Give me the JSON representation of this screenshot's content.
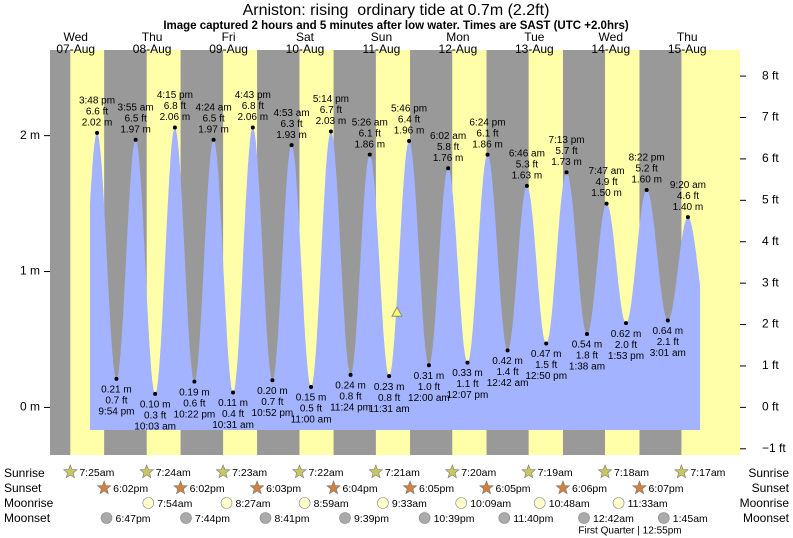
{
  "chart_data": {
    "type": "tide",
    "title": "Arniston: rising  ordinary tide at 0.7m (2.2ft)",
    "subtitle": "Image captured 2 hours and 5 minutes after low water. Times are SAST (UTC +2.0hrs)",
    "ylim": [
      -0.35,
      2.63
    ],
    "yticks": [
      {
        "value": 0,
        "label": "0 m"
      },
      {
        "value": 1,
        "label": "1 m"
      },
      {
        "value": 2,
        "label": "2 m"
      }
    ],
    "y2lim": [
      -1.15,
      8.63
    ],
    "y2ticks": [
      {
        "value": -1,
        "label": "−1 ft"
      },
      {
        "value": 0,
        "label": "0 ft"
      },
      {
        "value": 1,
        "label": "1 ft"
      },
      {
        "value": 2,
        "label": "2 ft"
      },
      {
        "value": 3,
        "label": "3 ft"
      },
      {
        "value": 4,
        "label": "4 ft"
      },
      {
        "value": 5,
        "label": "5 ft"
      },
      {
        "value": 6,
        "label": "6 ft"
      },
      {
        "value": 7,
        "label": "7 ft"
      },
      {
        "value": 8,
        "label": "8 ft"
      }
    ],
    "current_level": 0.7,
    "row_labels": {
      "sunrise": "Sunrise",
      "sunset": "Sunset",
      "moonrise": "Moonrise",
      "moonset": "Moonset"
    },
    "moon_phase": "First Quarter | 12:55pm",
    "colors": {
      "day": "#ffffaa",
      "night": "#999999",
      "water": "#a3b3ff",
      "date": "#cc0000"
    },
    "days": [
      {
        "weekday": "Wed",
        "date": "07-Aug",
        "sunrise": "7:25am",
        "sunset": "6:02pm",
        "moonrise": null,
        "moonset": "6:47pm",
        "tides": [
          {
            "time": "3:48 pm",
            "height": 2.02,
            "height_label": "2.02 m",
            "ft_label": "6.6 ft"
          },
          {
            "time": "9:54 pm",
            "height": 0.21,
            "height_label": "0.21 m",
            "ft_label": "0.7 ft"
          }
        ]
      },
      {
        "weekday": "Thu",
        "date": "08-Aug",
        "sunrise": "7:24am",
        "sunset": "6:02pm",
        "moonrise": "7:54am",
        "moonset": "7:44pm",
        "tides": [
          {
            "time": "3:55 am",
            "height": 1.97,
            "height_label": "1.97 m",
            "ft_label": "6.5 ft"
          },
          {
            "time": "10:03 am",
            "height": 0.1,
            "height_label": "0.10 m",
            "ft_label": "0.3 ft"
          },
          {
            "time": "4:15 pm",
            "height": 2.06,
            "height_label": "2.06 m",
            "ft_label": "6.8 ft"
          },
          {
            "time": "10:22 pm",
            "height": 0.19,
            "height_label": "0.19 m",
            "ft_label": "0.6 ft"
          }
        ]
      },
      {
        "weekday": "Fri",
        "date": "09-Aug",
        "sunrise": "7:23am",
        "sunset": "6:03pm",
        "moonrise": "8:27am",
        "moonset": "8:41pm",
        "tides": [
          {
            "time": "4:24 am",
            "height": 1.97,
            "height_label": "1.97 m",
            "ft_label": "6.5 ft"
          },
          {
            "time": "10:31 am",
            "height": 0.11,
            "height_label": "0.11 m",
            "ft_label": "0.4 ft"
          },
          {
            "time": "4:43 pm",
            "height": 2.06,
            "height_label": "2.06 m",
            "ft_label": "6.8 ft"
          },
          {
            "time": "10:52 pm",
            "height": 0.2,
            "height_label": "0.20 m",
            "ft_label": "0.7 ft"
          }
        ]
      },
      {
        "weekday": "Sat",
        "date": "10-Aug",
        "sunrise": "7:22am",
        "sunset": "6:04pm",
        "moonrise": "8:59am",
        "moonset": "9:39pm",
        "tides": [
          {
            "time": "4:53 am",
            "height": 1.93,
            "height_label": "1.93 m",
            "ft_label": "6.3 ft"
          },
          {
            "time": "11:00 am",
            "height": 0.15,
            "height_label": "0.15 m",
            "ft_label": "0.5 ft"
          },
          {
            "time": "5:14 pm",
            "height": 2.03,
            "height_label": "2.03 m",
            "ft_label": "6.7 ft"
          },
          {
            "time": "11:24 pm",
            "height": 0.24,
            "height_label": "0.24 m",
            "ft_label": "0.8 ft"
          }
        ]
      },
      {
        "weekday": "Sun",
        "date": "11-Aug",
        "sunrise": "7:21am",
        "sunset": "6:05pm",
        "moonrise": "9:33am",
        "moonset": "10:39pm",
        "tides": [
          {
            "time": "5:26 am",
            "height": 1.86,
            "height_label": "1.86 m",
            "ft_label": "6.1 ft"
          },
          {
            "time": "11:31 am",
            "height": 0.23,
            "height_label": "0.23 m",
            "ft_label": "0.8 ft"
          },
          {
            "time": "5:46 pm",
            "height": 1.96,
            "height_label": "1.96 m",
            "ft_label": "6.4 ft"
          }
        ]
      },
      {
        "weekday": "Mon",
        "date": "12-Aug",
        "sunrise": "7:20am",
        "sunset": "6:05pm",
        "moonrise": "10:09am",
        "moonset": "11:40pm",
        "tides": [
          {
            "time": "12:00 am",
            "height": 0.31,
            "height_label": "0.31 m",
            "ft_label": "1.0 ft"
          },
          {
            "time": "6:02 am",
            "height": 1.76,
            "height_label": "1.76 m",
            "ft_label": "5.8 ft"
          },
          {
            "time": "12:07 pm",
            "height": 0.33,
            "height_label": "0.33 m",
            "ft_label": "1.1 ft"
          },
          {
            "time": "6:24 pm",
            "height": 1.86,
            "height_label": "1.86 m",
            "ft_label": "6.1 ft"
          }
        ]
      },
      {
        "weekday": "Tue",
        "date": "13-Aug",
        "sunrise": "7:19am",
        "sunset": "6:06pm",
        "moonrise": "10:48am",
        "moonset": null,
        "tides": [
          {
            "time": "12:42 am",
            "height": 0.42,
            "height_label": "0.42 m",
            "ft_label": "1.4 ft"
          },
          {
            "time": "6:46 am",
            "height": 1.63,
            "height_label": "1.63 m",
            "ft_label": "5.3 ft"
          },
          {
            "time": "12:50 pm",
            "height": 0.47,
            "height_label": "0.47 m",
            "ft_label": "1.5 ft"
          },
          {
            "time": "7:13 pm",
            "height": 1.73,
            "height_label": "1.73 m",
            "ft_label": "5.7 ft"
          }
        ]
      },
      {
        "weekday": "Wed",
        "date": "14-Aug",
        "sunrise": "7:18am",
        "sunset": "6:07pm",
        "moonrise": "11:33am",
        "moonset": "12:42am",
        "tides": [
          {
            "time": "1:38 am",
            "height": 0.54,
            "height_label": "0.54 m",
            "ft_label": "1.8 ft"
          },
          {
            "time": "7:47 am",
            "height": 1.5,
            "height_label": "1.50 m",
            "ft_label": "4.9 ft"
          },
          {
            "time": "1:53 pm",
            "height": 0.62,
            "height_label": "0.62 m",
            "ft_label": "2.0 ft"
          },
          {
            "time": "8:22 pm",
            "height": 1.6,
            "height_label": "1.60 m",
            "ft_label": "5.2 ft"
          }
        ]
      },
      {
        "weekday": "Thu",
        "date": "15-Aug",
        "sunrise": "7:17am",
        "sunset": null,
        "moonrise": null,
        "moonset": "1:45am",
        "tides": [
          {
            "time": "3:01 am",
            "height": 0.64,
            "height_label": "0.64 m",
            "ft_label": "2.1 ft"
          },
          {
            "time": "9:20 am",
            "height": 1.4,
            "height_label": "1.40 m",
            "ft_label": "4.6 ft"
          }
        ]
      }
    ]
  }
}
